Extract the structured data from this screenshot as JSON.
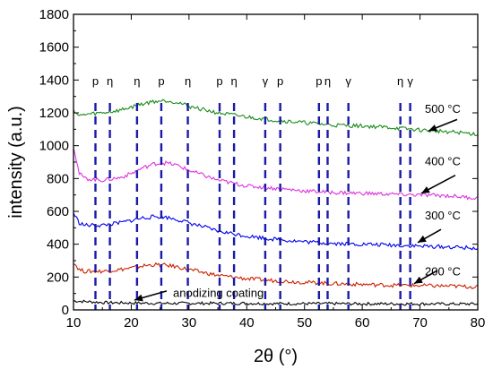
{
  "chart_data": {
    "type": "line",
    "title": "",
    "xlabel": "2θ (°)",
    "ylabel": "intensity (a.u.)",
    "xlim": [
      10,
      80
    ],
    "ylim": [
      0,
      1800
    ],
    "xticks": [
      10,
      20,
      30,
      40,
      50,
      60,
      70,
      80
    ],
    "yticks": [
      0,
      200,
      400,
      600,
      800,
      1000,
      1200,
      1400,
      1600,
      1800
    ],
    "grid": false,
    "series": [
      {
        "name": "anodizing coating",
        "color": "#000000",
        "x": [
          10,
          15,
          20,
          25,
          30,
          35,
          40,
          45,
          50,
          55,
          60,
          65,
          70,
          75,
          80
        ],
        "y": [
          55,
          45,
          42,
          40,
          40,
          40,
          40,
          38,
          38,
          38,
          37,
          37,
          37,
          36,
          36
        ]
      },
      {
        "name": "200 °C",
        "color": "#cc2200",
        "x": [
          10,
          11,
          12,
          15,
          18,
          20,
          22,
          24,
          26,
          28,
          30,
          35,
          40,
          45,
          50,
          55,
          60,
          65,
          70,
          75,
          80
        ],
        "y": [
          290,
          245,
          235,
          235,
          245,
          255,
          268,
          275,
          272,
          262,
          245,
          210,
          190,
          178,
          168,
          160,
          155,
          150,
          148,
          145,
          140
        ]
      },
      {
        "name": "300 °C",
        "color": "#0000ee",
        "x": [
          10,
          11,
          12,
          15,
          18,
          20,
          22,
          24,
          26,
          28,
          30,
          35,
          40,
          45,
          50,
          55,
          60,
          65,
          70,
          75,
          80
        ],
        "y": [
          590,
          530,
          515,
          515,
          530,
          545,
          560,
          568,
          565,
          550,
          530,
          480,
          450,
          430,
          415,
          405,
          400,
          395,
          388,
          383,
          375
        ]
      },
      {
        "name": "400 °C",
        "color": "#dd33dd",
        "x": [
          10,
          11,
          12,
          15,
          18,
          20,
          22,
          24,
          26,
          28,
          30,
          35,
          40,
          45,
          50,
          55,
          60,
          65,
          70,
          75,
          80
        ],
        "y": [
          1000,
          830,
          800,
          790,
          805,
          830,
          865,
          890,
          895,
          880,
          850,
          790,
          755,
          740,
          725,
          715,
          710,
          705,
          700,
          695,
          680
        ]
      },
      {
        "name": "500 °C",
        "color": "#1a8a1a",
        "x": [
          10,
          11,
          12,
          15,
          18,
          20,
          22,
          24,
          26,
          28,
          30,
          35,
          40,
          45,
          50,
          55,
          60,
          65,
          70,
          75,
          80
        ],
        "y": [
          1220,
          1180,
          1190,
          1200,
          1215,
          1235,
          1255,
          1270,
          1275,
          1265,
          1240,
          1200,
          1175,
          1155,
          1140,
          1125,
          1120,
          1110,
          1095,
          1085,
          1070
        ]
      }
    ],
    "series_labels": [
      "500 °C",
      "400 °C",
      "300 °C",
      "200 °C",
      "anodizing coating"
    ],
    "peak_markers": [
      {
        "x": 13.8,
        "label": "p"
      },
      {
        "x": 16.3,
        "label": "η"
      },
      {
        "x": 21.0,
        "label": "η"
      },
      {
        "x": 25.2,
        "label": "p"
      },
      {
        "x": 29.8,
        "label": "η"
      },
      {
        "x": 35.3,
        "label": "p"
      },
      {
        "x": 37.8,
        "label": "η"
      },
      {
        "x": 43.2,
        "label": "γ"
      },
      {
        "x": 45.8,
        "label": "p"
      },
      {
        "x": 52.5,
        "label": "p"
      },
      {
        "x": 54.0,
        "label": "η"
      },
      {
        "x": 57.6,
        "label": "γ"
      },
      {
        "x": 66.6,
        "label": "η"
      },
      {
        "x": 68.3,
        "label": "γ"
      }
    ],
    "peak_line_color": "#1a1aa8"
  }
}
